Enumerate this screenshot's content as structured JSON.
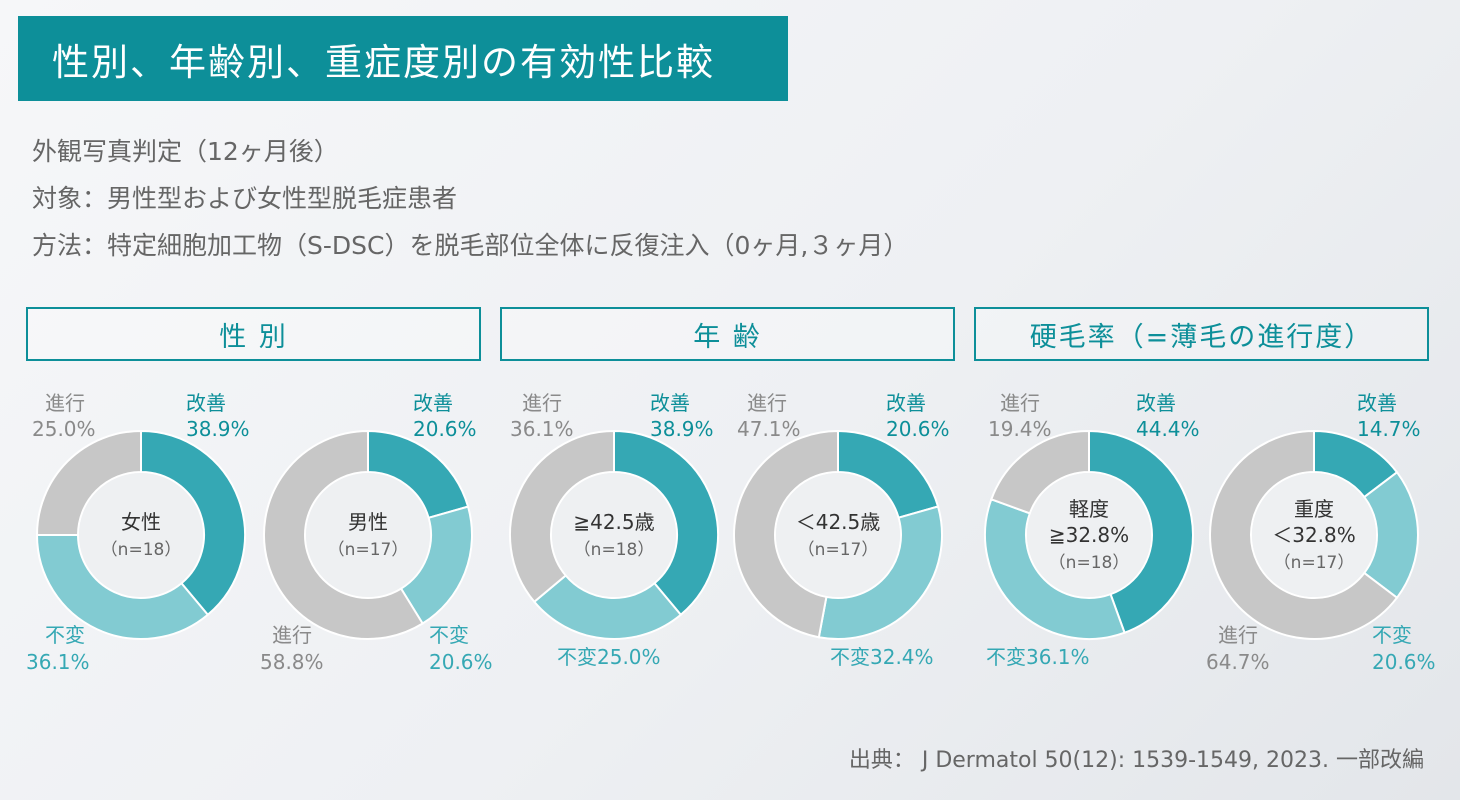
{
  "title": "性別、年齢別、重症度別の有効性比較",
  "info_lines": [
    "外観写真判定（12ヶ月後）",
    "対象：男性型および女性型脱毛症患者",
    "方法：特定細胞加工物（S-DSC）を脱毛部位全体に反復注入（0ヶ月,３ヶ月）"
  ],
  "sections": {
    "sex": "性 別",
    "age": "年 齢",
    "severity": "硬毛率（=薄毛の進行度）"
  },
  "citation": "出典： J Dermatol 50(12): 1539-1549, 2023. 一部改編",
  "colors": {
    "improve": "#35a8b4",
    "unchanged": "#82cbd2",
    "progress": "#c7c7c7",
    "accent": "#0d8f99"
  },
  "chart_data": [
    {
      "type": "pie",
      "center_lines": [
        "女性",
        "（n=18）"
      ],
      "slices": [
        {
          "name": "改善",
          "value": 38.9,
          "label": "38.9%"
        },
        {
          "name": "不変",
          "value": 36.1,
          "label": "36.1%"
        },
        {
          "name": "進行",
          "value": 25.0,
          "label": "25.0%"
        }
      ]
    },
    {
      "type": "pie",
      "center_lines": [
        "男性",
        "（n=17）"
      ],
      "slices": [
        {
          "name": "改善",
          "value": 20.6,
          "label": "20.6%"
        },
        {
          "name": "不変",
          "value": 20.6,
          "label": "20.6%"
        },
        {
          "name": "進行",
          "value": 58.8,
          "label": "58.8%"
        }
      ]
    },
    {
      "type": "pie",
      "center_lines": [
        "≧42.5歳",
        "（n=18）"
      ],
      "slices": [
        {
          "name": "改善",
          "value": 38.9,
          "label": "38.9%"
        },
        {
          "name": "不変",
          "value": 25.0,
          "label": "不変25.0%"
        },
        {
          "name": "進行",
          "value": 36.1,
          "label": "36.1%"
        }
      ]
    },
    {
      "type": "pie",
      "center_lines": [
        "＜42.5歳",
        "（n=17）"
      ],
      "slices": [
        {
          "name": "改善",
          "value": 20.6,
          "label": "20.6%"
        },
        {
          "name": "不変",
          "value": 32.4,
          "label": "不変32.4%"
        },
        {
          "name": "進行",
          "value": 47.1,
          "label": "47.1%"
        }
      ]
    },
    {
      "type": "pie",
      "center_lines": [
        "軽度",
        "≧32.8%",
        "（n=18）"
      ],
      "slices": [
        {
          "name": "改善",
          "value": 44.4,
          "label": "44.4%"
        },
        {
          "name": "不変",
          "value": 36.1,
          "label": "不変36.1%"
        },
        {
          "name": "進行",
          "value": 19.4,
          "label": "19.4%"
        }
      ]
    },
    {
      "type": "pie",
      "center_lines": [
        "重度",
        "＜32.8%",
        "（n=17）"
      ],
      "slices": [
        {
          "name": "改善",
          "value": 14.7,
          "label": "14.7%"
        },
        {
          "name": "不変",
          "value": 20.6,
          "label": "20.6%"
        },
        {
          "name": "進行",
          "value": 64.7,
          "label": "64.7%"
        }
      ]
    }
  ]
}
